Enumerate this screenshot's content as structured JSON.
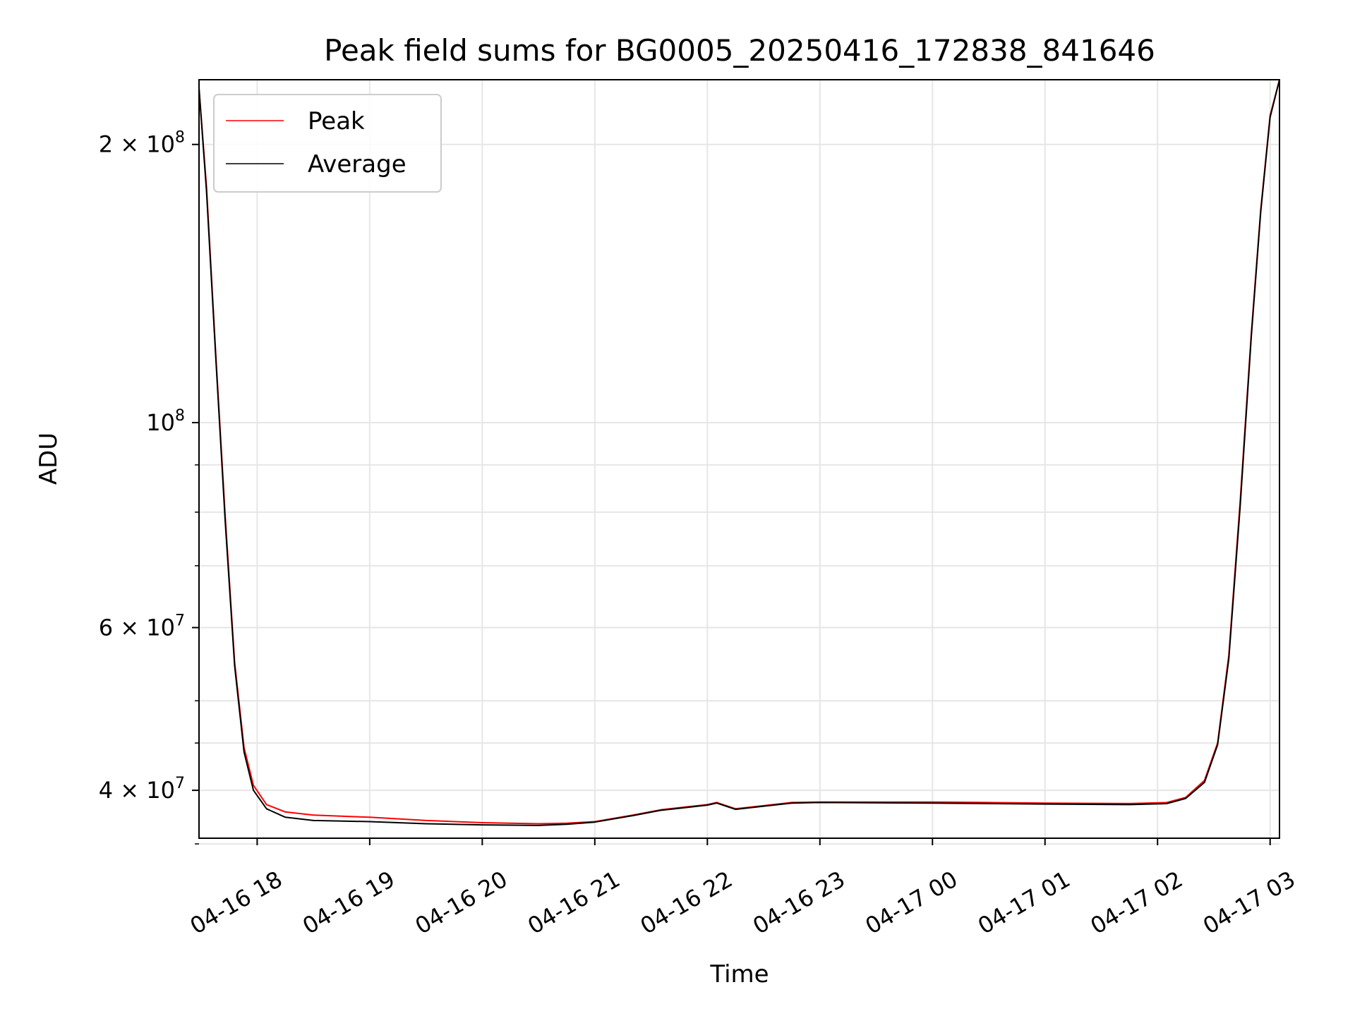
{
  "chart_data": {
    "type": "line",
    "title": "Peak field sums for BG0005_20250416_172838_841646",
    "xlabel": "Time",
    "ylabel": "ADU",
    "yscale": "log",
    "ylim": [
      35500000,
      235000000
    ],
    "xlim": [
      "04-16 17:29",
      "04-17 03:05"
    ],
    "x_ticks": [
      "04-16 18",
      "04-16 19",
      "04-16 20",
      "04-16 21",
      "04-16 22",
      "04-16 23",
      "04-17 00",
      "04-17 01",
      "04-17 02",
      "04-17 03"
    ],
    "y_ticks": [
      {
        "value": 40000000,
        "mant": "4",
        "exp": "7"
      },
      {
        "value": 60000000,
        "mant": "6",
        "exp": "7"
      },
      {
        "value": 100000000,
        "mant": "",
        "exp": "8"
      },
      {
        "value": 200000000,
        "mant": "2",
        "exp": "8"
      }
    ],
    "grid": true,
    "legend_position": "upper-left",
    "series": [
      {
        "name": "Peak",
        "color": "#ff0000",
        "x": [
          "04-16 17:29",
          "04-16 17:33",
          "04-16 17:38",
          "04-16 17:43",
          "04-16 17:48",
          "04-16 17:53",
          "04-16 17:58",
          "04-16 18:05",
          "04-16 18:15",
          "04-16 18:30",
          "04-16 19:00",
          "04-16 19:30",
          "04-16 20:00",
          "04-16 20:30",
          "04-16 20:45",
          "04-16 21:00",
          "04-16 21:20",
          "04-16 21:35",
          "04-16 21:45",
          "04-16 22:00",
          "04-16 22:05",
          "04-16 22:15",
          "04-16 22:30",
          "04-16 22:45",
          "04-16 23:00",
          "04-17 00:00",
          "04-17 01:00",
          "04-17 01:45",
          "04-17 02:05",
          "04-17 02:15",
          "04-17 02:25",
          "04-17 02:32",
          "04-17 02:38",
          "04-17 02:44",
          "04-17 02:50",
          "04-17 02:55",
          "04-17 03:00",
          "04-17 03:05"
        ],
        "y": [
          230000000,
          180000000,
          118000000,
          79000000,
          55000000,
          44500000,
          40500000,
          38600000,
          37900000,
          37600000,
          37400000,
          37100000,
          36900000,
          36800000,
          36850000,
          37000000,
          37600000,
          38100000,
          38300000,
          38600000,
          38800000,
          38200000,
          38500000,
          38800000,
          38850000,
          38850000,
          38750000,
          38700000,
          38800000,
          39300000,
          41000000,
          45000000,
          56000000,
          82000000,
          125000000,
          170000000,
          215000000,
          235000000
        ]
      },
      {
        "name": "Average",
        "color": "#000000",
        "x": [
          "04-16 17:29",
          "04-16 17:33",
          "04-16 17:38",
          "04-16 17:43",
          "04-16 17:48",
          "04-16 17:53",
          "04-16 17:58",
          "04-16 18:05",
          "04-16 18:15",
          "04-16 18:30",
          "04-16 19:00",
          "04-16 19:30",
          "04-16 20:00",
          "04-16 20:30",
          "04-16 20:45",
          "04-16 21:00",
          "04-16 21:20",
          "04-16 21:35",
          "04-16 21:45",
          "04-16 22:00",
          "04-16 22:05",
          "04-16 22:15",
          "04-16 22:30",
          "04-16 22:45",
          "04-16 23:00",
          "04-17 00:00",
          "04-17 01:00",
          "04-17 01:45",
          "04-17 02:05",
          "04-17 02:15",
          "04-17 02:25",
          "04-17 02:32",
          "04-17 02:38",
          "04-17 02:44",
          "04-17 02:50",
          "04-17 02:55",
          "04-17 03:00",
          "04-17 03:05"
        ],
        "y": [
          230000000,
          178000000,
          117000000,
          78000000,
          54500000,
          44000000,
          40000000,
          38200000,
          37400000,
          37100000,
          37000000,
          36800000,
          36700000,
          36650000,
          36750000,
          36950000,
          37550000,
          38050000,
          38250000,
          38550000,
          38750000,
          38150000,
          38450000,
          38750000,
          38800000,
          38750000,
          38650000,
          38600000,
          38700000,
          39200000,
          40800000,
          44800000,
          55500000,
          81000000,
          124000000,
          169000000,
          214000000,
          235000000
        ]
      }
    ]
  }
}
